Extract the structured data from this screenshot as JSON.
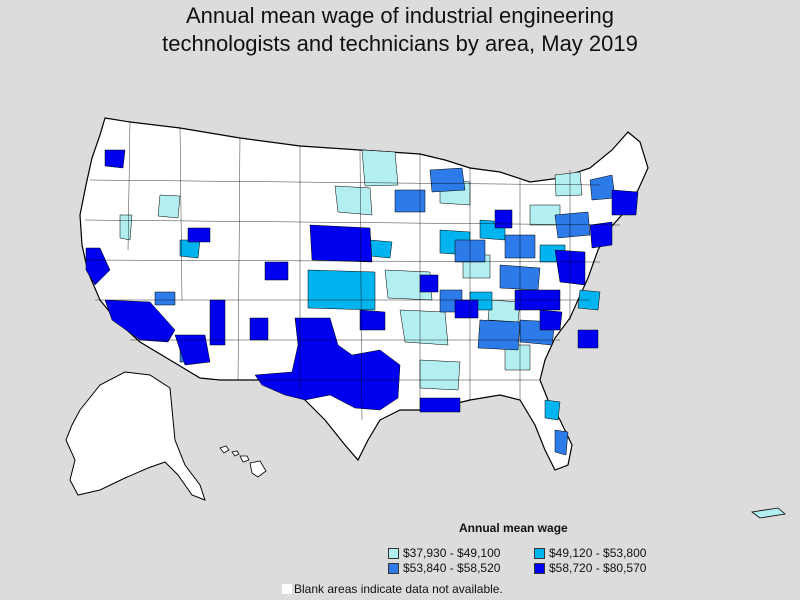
{
  "title_line1": "Annual mean wage of industrial engineering",
  "title_line2": "technologists and technicians by area, May 2019",
  "legend": {
    "title": "Annual mean wage",
    "items": [
      {
        "label": "$37,930 - $49,100",
        "color": "#b3eef0"
      },
      {
        "label": "$49,120 - $53,800",
        "color": "#00b4f0"
      },
      {
        "label": "$53,840 - $58,520",
        "color": "#2c7be8"
      },
      {
        "label": "$58,720 - $80,570",
        "color": "#0000f0"
      }
    ],
    "note": "Blank areas indicate data not available."
  },
  "colors": {
    "background": "#dcdcdc",
    "blank": "#ffffff",
    "border": "#000000"
  }
}
